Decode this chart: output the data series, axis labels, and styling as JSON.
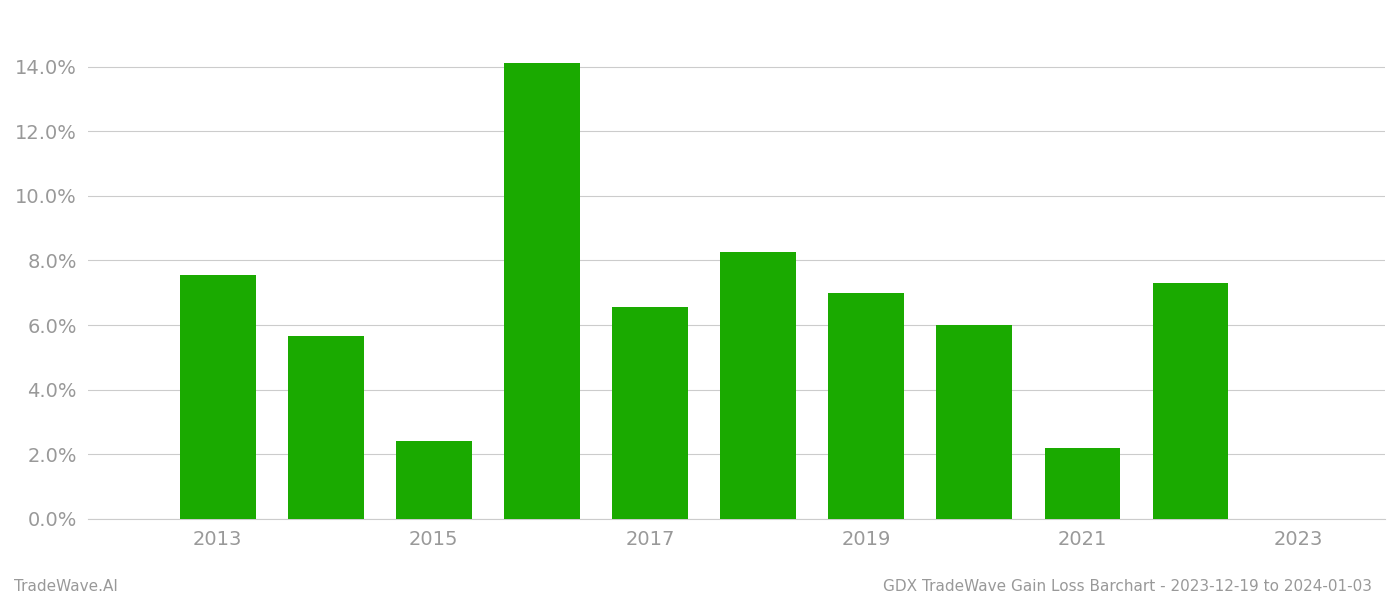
{
  "years": [
    2013,
    2014,
    2015,
    2016,
    2017,
    2018,
    2019,
    2020,
    2021,
    2022
  ],
  "values": [
    0.0755,
    0.0565,
    0.024,
    0.141,
    0.0655,
    0.0825,
    0.07,
    0.06,
    0.022,
    0.073
  ],
  "bar_color": "#1aaa00",
  "background_color": "#ffffff",
  "grid_color": "#cccccc",
  "tick_color": "#999999",
  "title_text": "GDX TradeWave Gain Loss Barchart - 2023-12-19 to 2024-01-03",
  "watermark_text": "TradeWave.AI",
  "ylim": [
    0,
    0.156
  ],
  "yticks": [
    0.0,
    0.02,
    0.04,
    0.06,
    0.08,
    0.1,
    0.12,
    0.14
  ],
  "title_fontsize": 11,
  "watermark_fontsize": 11,
  "tick_fontsize": 14,
  "bar_width": 0.7
}
